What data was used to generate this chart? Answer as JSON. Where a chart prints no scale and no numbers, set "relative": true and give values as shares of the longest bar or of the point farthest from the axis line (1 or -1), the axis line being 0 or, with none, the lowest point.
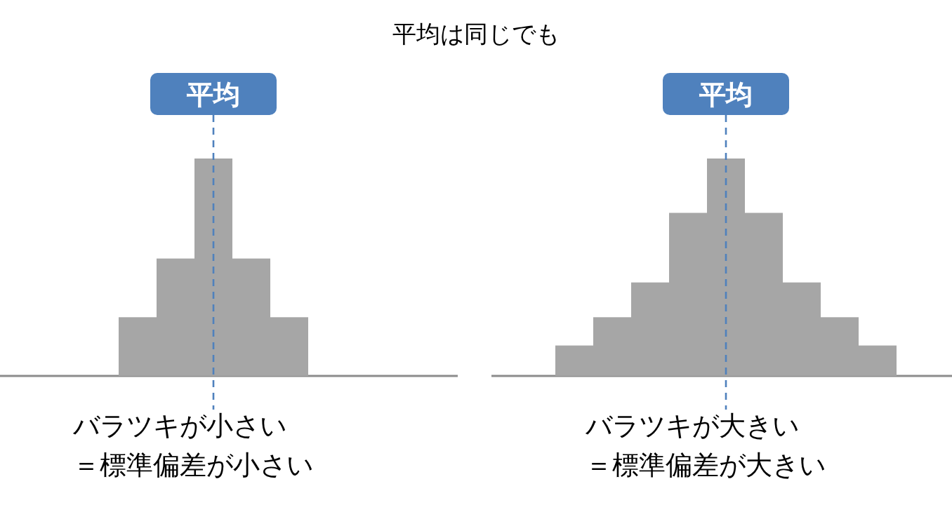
{
  "chart_data": [
    {
      "type": "other",
      "title": "平均は同じでも"
    },
    {
      "type": "bar",
      "relative": true,
      "categories": [
        null,
        null,
        null,
        null,
        null
      ],
      "series": [
        {
          "color": "#a6a6a6",
          "values": [
            0.27,
            0.54,
            1,
            0.54,
            0.27
          ]
        }
      ],
      "annotations": [
        "平均",
        "バラツキが小さい",
        "＝標準偏差が小さい"
      ]
    },
    {
      "type": "bar",
      "relative": true,
      "categories": [
        null,
        null,
        null,
        null,
        null,
        null,
        null,
        null,
        null
      ],
      "series": [
        {
          "color": "#a6a6a6",
          "values": [
            0.14,
            0.27,
            0.43,
            0.75,
            1,
            0.75,
            0.43,
            0.27,
            0.14
          ]
        }
      ],
      "annotations": [
        "平均",
        "バラツキが大きい",
        "＝標準偏差が大きい"
      ]
    }
  ]
}
